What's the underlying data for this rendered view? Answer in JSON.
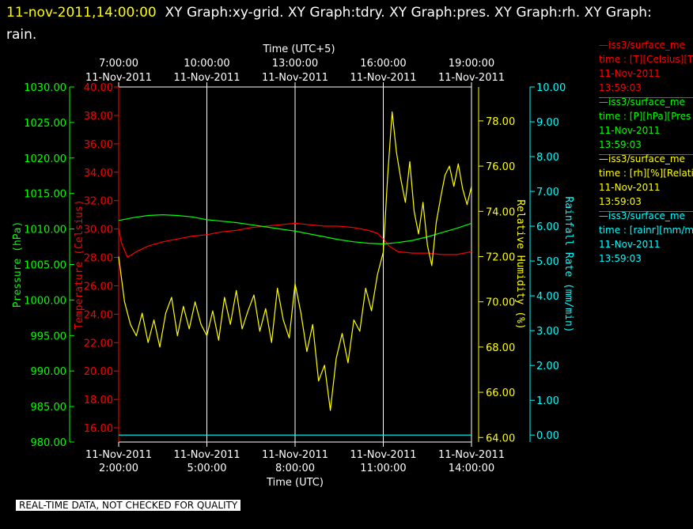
{
  "header": {
    "timestamp": "11-nov-2011,14:00:00",
    "graphs": "XY Graph:xy-grid.  XY Graph:tdry.  XY Graph:pres.  XY Graph:rh.  XY Graph:",
    "graphs_line2": "rain."
  },
  "legend": [
    {
      "line1": "—iss3/surface_me",
      "line2": "time : [T][Celsius][T",
      "line3": "11-Nov-2011",
      "line4": "13:59:03",
      "color": "#ff0000"
    },
    {
      "line1": "—iss3/surface_me",
      "line2": "time : [P][hPa][Pres",
      "line3": "11-Nov-2011",
      "line4": "13:59:03",
      "color": "#00ff00"
    },
    {
      "line1": "—iss3/surface_me",
      "line2": "time : [rh][%][Relati",
      "line3": "11-Nov-2011",
      "line4": "13:59:03",
      "color": "#ffff00"
    },
    {
      "line1": "—iss3/surface_me",
      "line2": "time : [rainr][mm/mi",
      "line3": "11-Nov-2011",
      "line4": "13:59:03",
      "color": "#00ffff"
    }
  ],
  "qc_label": "REAL-TIME DATA, NOT CHECKED FOR QUALITY",
  "chart_data": {
    "type": "line",
    "top_axis": {
      "title": "Time (UTC+5)",
      "ticks": [
        {
          "time": "7:00:00",
          "date": "11-Nov-2011"
        },
        {
          "time": "10:00:00",
          "date": "11-Nov-2011"
        },
        {
          "time": "13:00:00",
          "date": "11-Nov-2011"
        },
        {
          "time": "16:00:00",
          "date": "11-Nov-2011"
        },
        {
          "time": "19:00:00",
          "date": "11-Nov-2011"
        }
      ]
    },
    "bottom_axis": {
      "title": "Time (UTC)",
      "range": [
        "2011-11-11 02:00:00",
        "2011-11-11 14:00:00"
      ],
      "ticks": [
        {
          "date": "11-Nov-2011",
          "time": "2:00:00",
          "hour": 2
        },
        {
          "date": "11-Nov-2011",
          "time": "5:00:00",
          "hour": 5
        },
        {
          "date": "11-Nov-2011",
          "time": "8:00:00",
          "hour": 8
        },
        {
          "date": "11-Nov-2011",
          "time": "11:00:00",
          "hour": 11
        },
        {
          "date": "11-Nov-2011",
          "time": "14:00:00",
          "hour": 14
        }
      ]
    },
    "vertical_grid_hours": [
      5,
      8,
      11,
      14
    ],
    "y_axes": [
      {
        "id": "pressure",
        "title": "Pressure (hPa)",
        "color": "#00ff00",
        "range": [
          980,
          1030
        ],
        "ticks": [
          "1030.00",
          "1025.00",
          "1020.00",
          "1015.00",
          "1010.00",
          "1005.00",
          "1000.00",
          "995.00",
          "990.00",
          "985.00",
          "980.00"
        ]
      },
      {
        "id": "temperature",
        "title": "Temperature (Celsius)",
        "color": "#ff0000",
        "range": [
          15,
          40
        ],
        "ticks": [
          "40.00",
          "38.00",
          "36.00",
          "34.00",
          "32.00",
          "30.00",
          "28.00",
          "26.00",
          "24.00",
          "22.00",
          "20.00",
          "18.00",
          "16.00"
        ]
      },
      {
        "id": "rh",
        "title": "Relative Humidity (%)",
        "color": "#ffff00",
        "range": [
          63.8,
          79.5
        ],
        "ticks": [
          "78.00",
          "76.00",
          "74.00",
          "72.00",
          "70.00",
          "68.00",
          "66.00",
          "64.00"
        ]
      },
      {
        "id": "rain",
        "title": "Rainfall Rate (mm/min)",
        "color": "#00ffff",
        "range": [
          -0.2,
          10
        ],
        "ticks": [
          "10.00",
          "9.00",
          "8.00",
          "7.00",
          "6.00",
          "5.00",
          "4.00",
          "3.00",
          "2.00",
          "1.00",
          "0.00"
        ]
      }
    ],
    "series": [
      {
        "axis": "temperature",
        "color": "#ff0000",
        "x": [
          2.0,
          2.1,
          2.3,
          2.6,
          3.0,
          3.5,
          4.0,
          4.5,
          5.0,
          5.5,
          6.0,
          6.5,
          7.0,
          7.5,
          8.0,
          8.5,
          9.0,
          9.5,
          10.0,
          10.5,
          10.8,
          11.0,
          11.2,
          11.5,
          12.0,
          12.5,
          13.0,
          13.5,
          14.0
        ],
        "y": [
          30.0,
          29.0,
          28.0,
          28.4,
          28.8,
          29.1,
          29.3,
          29.5,
          29.6,
          29.8,
          29.9,
          30.1,
          30.2,
          30.3,
          30.4,
          30.3,
          30.2,
          30.2,
          30.1,
          29.9,
          29.7,
          29.3,
          28.8,
          28.4,
          28.3,
          28.3,
          28.2,
          28.2,
          28.4
        ]
      },
      {
        "axis": "pressure",
        "color": "#00ff00",
        "x": [
          2.0,
          2.5,
          3.0,
          3.5,
          4.0,
          4.5,
          5.0,
          5.5,
          6.0,
          6.5,
          7.0,
          7.5,
          8.0,
          8.5,
          9.0,
          9.5,
          10.0,
          10.5,
          11.0,
          11.5,
          12.0,
          12.5,
          13.0,
          13.5,
          14.0
        ],
        "y": [
          1011.2,
          1011.6,
          1011.9,
          1012.0,
          1011.9,
          1011.7,
          1011.3,
          1011.1,
          1010.9,
          1010.6,
          1010.3,
          1010.0,
          1009.7,
          1009.3,
          1008.9,
          1008.5,
          1008.2,
          1008.0,
          1007.9,
          1008.1,
          1008.4,
          1008.9,
          1009.5,
          1010.1,
          1010.8
        ]
      },
      {
        "axis": "rh",
        "color": "#ffff00",
        "x": [
          2.0,
          2.2,
          2.4,
          2.6,
          2.8,
          3.0,
          3.2,
          3.4,
          3.6,
          3.8,
          4.0,
          4.2,
          4.4,
          4.6,
          4.8,
          5.0,
          5.2,
          5.4,
          5.6,
          5.8,
          6.0,
          6.2,
          6.4,
          6.6,
          6.8,
          7.0,
          7.2,
          7.4,
          7.6,
          7.8,
          8.0,
          8.2,
          8.4,
          8.6,
          8.8,
          9.0,
          9.2,
          9.4,
          9.6,
          9.8,
          10.0,
          10.2,
          10.4,
          10.6,
          10.8,
          11.0,
          11.15,
          11.3,
          11.45,
          11.6,
          11.75,
          11.9,
          12.05,
          12.2,
          12.35,
          12.5,
          12.65,
          12.8,
          12.95,
          13.1,
          13.25,
          13.4,
          13.55,
          13.7,
          13.85,
          14.0
        ],
        "y": [
          72.0,
          70.0,
          69.0,
          68.5,
          69.5,
          68.2,
          69.2,
          68.0,
          69.5,
          70.2,
          68.5,
          69.8,
          68.8,
          70.0,
          69.0,
          68.5,
          69.6,
          68.3,
          70.2,
          69.0,
          70.5,
          68.8,
          69.6,
          70.3,
          68.7,
          69.7,
          68.2,
          70.6,
          69.2,
          68.4,
          70.8,
          69.5,
          67.8,
          69.0,
          66.5,
          67.2,
          65.2,
          67.5,
          68.6,
          67.3,
          69.2,
          68.7,
          70.6,
          69.6,
          71.2,
          72.2,
          75.6,
          78.4,
          76.6,
          75.4,
          74.4,
          76.2,
          74.0,
          73.0,
          74.4,
          72.5,
          71.6,
          73.5,
          74.6,
          75.6,
          76.0,
          75.1,
          76.1,
          75.0,
          74.3,
          75.1
        ]
      },
      {
        "axis": "rain",
        "color": "#00ffff",
        "x": [
          2.0,
          14.0
        ],
        "y": [
          0.0,
          0.0
        ]
      }
    ]
  }
}
